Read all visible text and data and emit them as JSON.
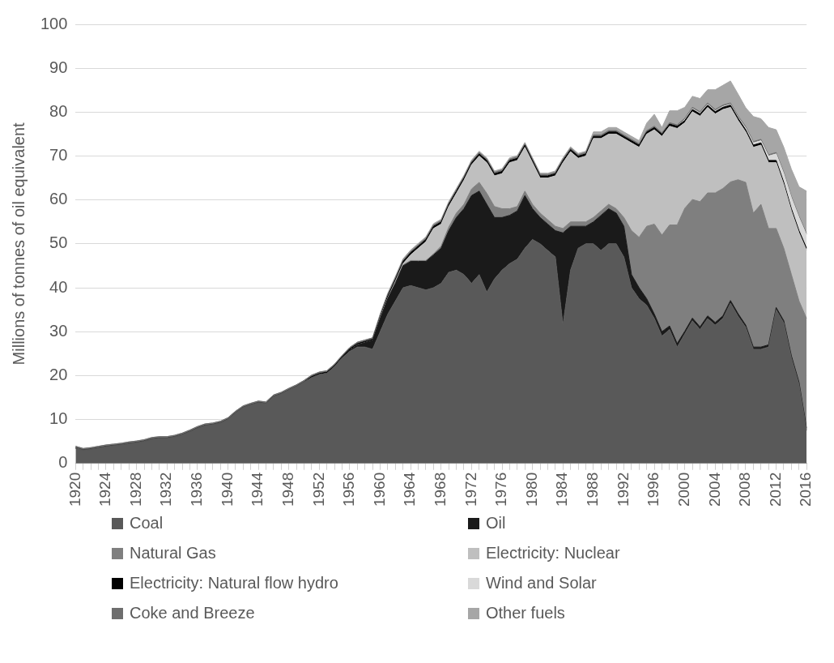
{
  "chart_data": {
    "type": "area",
    "stacked": true,
    "ylabel": "Millions of tonnes of oil equivalent",
    "categories": [
      "1920",
      null,
      null,
      null,
      "1924",
      null,
      null,
      null,
      "1928",
      null,
      null,
      null,
      "1932",
      null,
      null,
      null,
      "1936",
      null,
      null,
      null,
      "1940",
      null,
      null,
      null,
      "1944",
      null,
      null,
      null,
      "1948",
      null,
      null,
      null,
      "1952",
      null,
      null,
      null,
      "1956",
      null,
      null,
      null,
      "1960",
      null,
      null,
      null,
      "1964",
      null,
      null,
      null,
      "1968",
      null,
      null,
      null,
      "1972",
      null,
      null,
      null,
      "1976",
      null,
      null,
      null,
      "1980",
      null,
      null,
      null,
      "1984",
      null,
      null,
      null,
      "1988",
      null,
      null,
      null,
      "1992",
      null,
      null,
      null,
      "1996",
      null,
      null,
      null,
      "2000",
      null,
      null,
      null,
      "2004",
      null,
      null,
      null,
      "2008",
      null,
      null,
      null,
      "2012",
      null,
      null,
      null,
      "2016"
    ],
    "series": [
      {
        "name": "Coal",
        "color": "#595959",
        "values": [
          3.5,
          3.0,
          3.2,
          3.5,
          3.8,
          4.0,
          4.2,
          4.5,
          4.7,
          5.0,
          5.5,
          5.7,
          5.7,
          6.0,
          6.5,
          7.2,
          8.0,
          8.6,
          8.8,
          9.2,
          10.0,
          11.5,
          12.7,
          13.3,
          13.8,
          13.6,
          15.2,
          15.8,
          16.7,
          17.5,
          18.5,
          19.5,
          20.2,
          20.5,
          22,
          24,
          25.5,
          26.5,
          26.5,
          26,
          30,
          34,
          37,
          40,
          40.5,
          40,
          39.5,
          40,
          41,
          43.5,
          44,
          43,
          41,
          43,
          39,
          42,
          44,
          45.5,
          46.5,
          49,
          51,
          50,
          48.5,
          47,
          31.5,
          44,
          49,
          50,
          50,
          48.5,
          50,
          50,
          47,
          40,
          37.5,
          36,
          33,
          29,
          30.5,
          26.5,
          29.5,
          32.5,
          30.5,
          33,
          31.5,
          33,
          36.5,
          33.5,
          31,
          26,
          26,
          26.5,
          35,
          32,
          24,
          18,
          7.5
        ]
      },
      {
        "name": "Oil",
        "color": "#1a1a1a",
        "values": [
          0,
          0,
          0,
          0,
          0,
          0,
          0,
          0,
          0,
          0,
          0,
          0,
          0,
          0,
          0,
          0,
          0,
          0,
          0,
          0,
          0,
          0,
          0,
          0,
          0,
          0,
          0,
          0,
          0,
          0,
          0,
          0,
          0,
          0,
          0,
          0,
          0.3,
          0.5,
          1,
          2,
          3,
          3.5,
          4,
          5,
          5.5,
          6,
          6.5,
          7.5,
          8,
          9.5,
          12,
          15,
          20,
          19,
          20,
          14,
          12,
          11,
          11,
          12,
          7,
          6,
          6,
          6,
          21,
          10,
          5,
          4,
          5,
          8,
          8,
          7,
          7,
          3,
          2.5,
          1.5,
          1,
          1,
          0.8,
          0.8,
          0.6,
          0.6,
          0.6,
          0.6,
          0.6,
          0.6,
          0.6,
          0.6,
          0.5,
          0.5,
          0.5,
          0.5,
          0.5,
          0.5,
          0.5,
          0.5,
          0.5
        ]
      },
      {
        "name": "Natural Gas",
        "color": "#7f7f7f",
        "values": [
          0,
          0,
          0,
          0,
          0,
          0,
          0,
          0,
          0,
          0,
          0,
          0,
          0,
          0,
          0,
          0,
          0,
          0,
          0,
          0,
          0,
          0,
          0,
          0,
          0,
          0,
          0,
          0,
          0,
          0,
          0,
          0,
          0,
          0,
          0,
          0,
          0,
          0,
          0,
          0,
          0.2,
          0.2,
          0.2,
          0.2,
          0.2,
          0.2,
          0.2,
          0.2,
          0.5,
          0.8,
          1,
          1,
          1.5,
          2,
          2.5,
          2.5,
          2,
          1.5,
          1,
          1,
          1,
          1,
          1,
          1,
          1,
          1,
          1,
          1,
          1,
          1,
          1,
          1,
          2,
          10,
          11.5,
          16.5,
          20.5,
          22,
          23,
          27,
          28,
          27,
          28.5,
          28,
          29.5,
          29,
          27,
          30.5,
          32.5,
          30.5,
          32.5,
          26.5,
          18,
          16.5,
          18.5,
          18.5,
          25
        ]
      },
      {
        "name": "Electricity: Nuclear",
        "color": "#bfbfbf",
        "values": [
          0,
          0,
          0,
          0,
          0,
          0,
          0,
          0,
          0,
          0,
          0,
          0,
          0,
          0,
          0,
          0,
          0,
          0,
          0,
          0,
          0,
          0,
          0,
          0,
          0,
          0,
          0,
          0,
          0,
          0,
          0,
          0,
          0,
          0,
          0,
          0,
          0,
          0,
          0,
          0,
          0,
          0,
          0.3,
          0.3,
          1.3,
          2.8,
          4.3,
          5.8,
          5,
          4.7,
          4.5,
          5.5,
          5.5,
          6,
          7,
          7,
          8,
          10.5,
          10.5,
          10,
          9.5,
          8,
          9.5,
          11.5,
          15,
          16,
          14.5,
          15,
          18,
          16.5,
          16,
          17,
          18,
          20,
          20.5,
          21,
          21.5,
          22.5,
          22.5,
          22,
          19.5,
          20,
          19.5,
          19.5,
          18,
          18,
          17,
          13.5,
          11.5,
          15,
          13.5,
          15,
          15,
          14.5,
          14.5,
          15.5,
          15.5
        ]
      },
      {
        "name": "Electricity: Natural flow hydro",
        "color": "#000000",
        "values": [
          0.1,
          0.1,
          0.1,
          0.1,
          0.1,
          0.1,
          0.1,
          0.1,
          0.1,
          0.1,
          0.1,
          0.1,
          0.1,
          0.1,
          0.1,
          0.1,
          0.1,
          0.1,
          0.1,
          0.1,
          0.1,
          0.1,
          0.1,
          0.1,
          0.1,
          0.1,
          0.1,
          0.1,
          0.1,
          0.1,
          0.1,
          0.3,
          0.3,
          0.3,
          0.3,
          0.3,
          0.3,
          0.3,
          0.3,
          0.3,
          0.3,
          0.5,
          0.5,
          0.5,
          0.5,
          0.5,
          0.5,
          0.5,
          0.5,
          0.5,
          0.5,
          0.5,
          0.5,
          0.5,
          0.5,
          0.5,
          0.5,
          0.5,
          0.5,
          0.5,
          0.5,
          0.5,
          0.5,
          0.5,
          0.5,
          0.5,
          0.5,
          0.5,
          0.5,
          0.5,
          0.5,
          0.5,
          0.5,
          0.5,
          0.5,
          0.5,
          0.5,
          0.5,
          0.5,
          0.5,
          0.5,
          0.5,
          0.5,
          0.5,
          0.5,
          0.5,
          0.5,
          0.5,
          0.5,
          0.5,
          0.5,
          0.5,
          0.5,
          0.5,
          0.5,
          0.5,
          0.5
        ]
      },
      {
        "name": "Wind and Solar",
        "color": "#d9d9d9",
        "values": [
          0,
          0,
          0,
          0,
          0,
          0,
          0,
          0,
          0,
          0,
          0,
          0,
          0,
          0,
          0,
          0,
          0,
          0,
          0,
          0,
          0,
          0,
          0,
          0,
          0,
          0,
          0,
          0,
          0,
          0,
          0,
          0,
          0,
          0,
          0,
          0,
          0,
          0,
          0,
          0,
          0,
          0,
          0,
          0,
          0,
          0,
          0,
          0,
          0,
          0,
          0,
          0,
          0,
          0,
          0,
          0,
          0,
          0,
          0,
          0,
          0,
          0,
          0,
          0,
          0,
          0,
          0,
          0,
          0,
          0,
          0,
          0,
          0,
          0,
          0,
          0,
          0,
          0,
          0,
          0,
          0.2,
          0.2,
          0.2,
          0.2,
          0.2,
          0.2,
          0.2,
          0.2,
          0.4,
          0.5,
          0.5,
          1,
          1.5,
          2,
          2.5,
          3,
          3
        ]
      },
      {
        "name": "Coke and Breeze",
        "color": "#6e6e6e",
        "values": [
          0.3,
          0.3,
          0.3,
          0.3,
          0.3,
          0.3,
          0.3,
          0.3,
          0.3,
          0.3,
          0.3,
          0.3,
          0.3,
          0.3,
          0.3,
          0.3,
          0.3,
          0.3,
          0.3,
          0.3,
          0.3,
          0.3,
          0.3,
          0.3,
          0.3,
          0.3,
          0.3,
          0.3,
          0.3,
          0.3,
          0.3,
          0.3,
          0.3,
          0.3,
          0.3,
          0.3,
          0.3,
          0.3,
          0.3,
          0.3,
          0.3,
          0.3,
          0.3,
          0.3,
          0.3,
          0.3,
          0.3,
          0.3,
          0.3,
          0.3,
          0.3,
          0.3,
          0.3,
          0.3,
          0.3,
          0.3,
          0.3,
          0.3,
          0.3,
          0.3,
          0.3,
          0.3,
          0.3,
          0.3,
          0.3,
          0.3,
          0.3,
          0.3,
          0.3,
          0.3,
          0.3,
          0.3,
          0.3,
          0.3,
          0.3,
          0.3,
          0.3,
          0.3,
          0.3,
          0.3,
          0.3,
          0.3,
          0.3,
          0.3,
          0.3,
          0.3,
          0.3,
          0.3,
          0.3,
          0.3,
          0.3,
          0.3,
          0.3,
          0.3,
          0.3,
          0.3,
          0.3
        ]
      },
      {
        "name": "Other fuels",
        "color": "#a6a6a6",
        "values": [
          0,
          0,
          0,
          0,
          0,
          0,
          0,
          0,
          0,
          0,
          0,
          0,
          0,
          0,
          0,
          0,
          0,
          0,
          0,
          0,
          0,
          0,
          0,
          0,
          0,
          0,
          0,
          0,
          0,
          0,
          0,
          0,
          0,
          0,
          0,
          0,
          0,
          0,
          0,
          0,
          0.3,
          0.3,
          0.3,
          0.3,
          0.3,
          0.3,
          0.3,
          0.3,
          0.3,
          0.3,
          0.3,
          0.3,
          0.3,
          0.3,
          0.3,
          0.3,
          0.3,
          0.3,
          0.3,
          0.3,
          0.3,
          0.3,
          0.3,
          0.3,
          0.3,
          0.3,
          0.3,
          0.3,
          0.7,
          0.7,
          0.7,
          0.7,
          0.7,
          0.7,
          0.7,
          1.7,
          2.7,
          1.2,
          2.7,
          3.2,
          2.5,
          2.5,
          3,
          3,
          4.5,
          4.5,
          5,
          5,
          4.3,
          5.7,
          4.7,
          6.2,
          5.2,
          5.7,
          6.2,
          6.7,
          9.7
        ]
      }
    ],
    "ylim": [
      0,
      100
    ],
    "yticks": [
      0,
      10,
      20,
      30,
      40,
      50,
      60,
      70,
      80,
      90,
      100
    ],
    "grid": "y",
    "legend": "bottom"
  }
}
